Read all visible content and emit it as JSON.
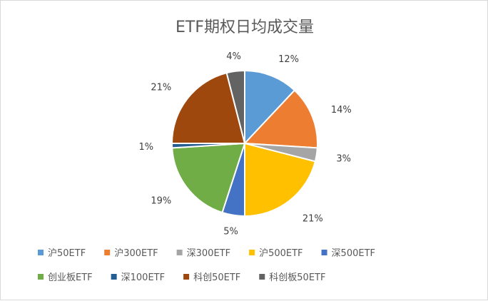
{
  "chart_data": {
    "type": "pie",
    "title": "ETF期权日均成交量",
    "categories": [
      "沪50ETF",
      "沪300ETF",
      "深300ETF",
      "沪500ETF",
      "深500ETF",
      "创业板ETF",
      "深100ETF",
      "科创50ETF",
      "科创板50ETF"
    ],
    "values": [
      12,
      14,
      3,
      21,
      5,
      19,
      1,
      21,
      4
    ],
    "labels": [
      "12%",
      "14%",
      "3%",
      "21%",
      "5%",
      "19%",
      "1%",
      "21%",
      "4%"
    ],
    "colors": [
      "#5B9BD5",
      "#ED7D31",
      "#A5A5A5",
      "#FFC000",
      "#4472C4",
      "#70AD47",
      "#255E91",
      "#9E480E",
      "#636363"
    ],
    "legend": "bottom",
    "start_angle": "12 o'clock, clockwise"
  }
}
